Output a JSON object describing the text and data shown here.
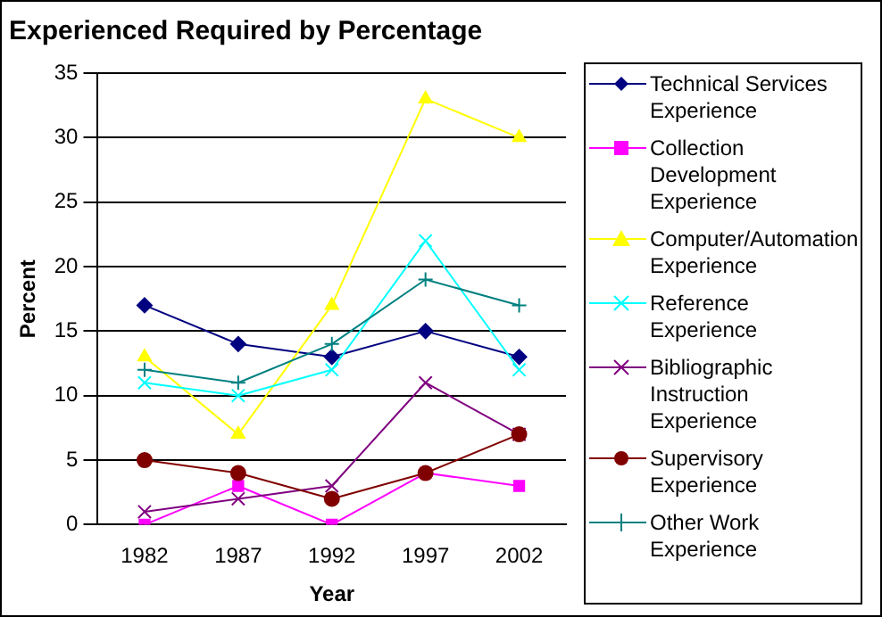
{
  "chart_data": {
    "type": "line",
    "title": "Experienced Required by Percentage",
    "xlabel": "Year",
    "ylabel": "Percent",
    "categories": [
      "1982",
      "1987",
      "1992",
      "1997",
      "2002"
    ],
    "ylim": [
      0,
      35
    ],
    "yticks": [
      0,
      5,
      10,
      15,
      20,
      25,
      30,
      35
    ],
    "grid": "y",
    "legend": "right",
    "series": [
      {
        "name": "Technical Services Experience",
        "color": "#000080",
        "marker": "diamond",
        "values": [
          17,
          14,
          13,
          15,
          13
        ]
      },
      {
        "name": "Collection Development Experience",
        "color": "#ff00ff",
        "marker": "square",
        "values": [
          0,
          3,
          0,
          4,
          3
        ]
      },
      {
        "name": "Computer/Automation Experience",
        "color": "#ffff00",
        "marker": "triangle",
        "values": [
          13,
          7,
          17,
          33,
          30
        ]
      },
      {
        "name": "Reference Experience",
        "color": "#00ffff",
        "marker": "cross",
        "values": [
          11,
          10,
          12,
          22,
          12
        ]
      },
      {
        "name": "Bibliographic Instruction Experience",
        "color": "#800080",
        "marker": "cross",
        "values": [
          1,
          2,
          3,
          11,
          7
        ]
      },
      {
        "name": "Supervisory Experience",
        "color": "#800000",
        "marker": "circle",
        "values": [
          5,
          4,
          2,
          4,
          7
        ]
      },
      {
        "name": "Other Work Experience",
        "color": "#008080",
        "marker": "plus",
        "values": [
          12,
          11,
          14,
          19,
          17
        ]
      }
    ]
  }
}
